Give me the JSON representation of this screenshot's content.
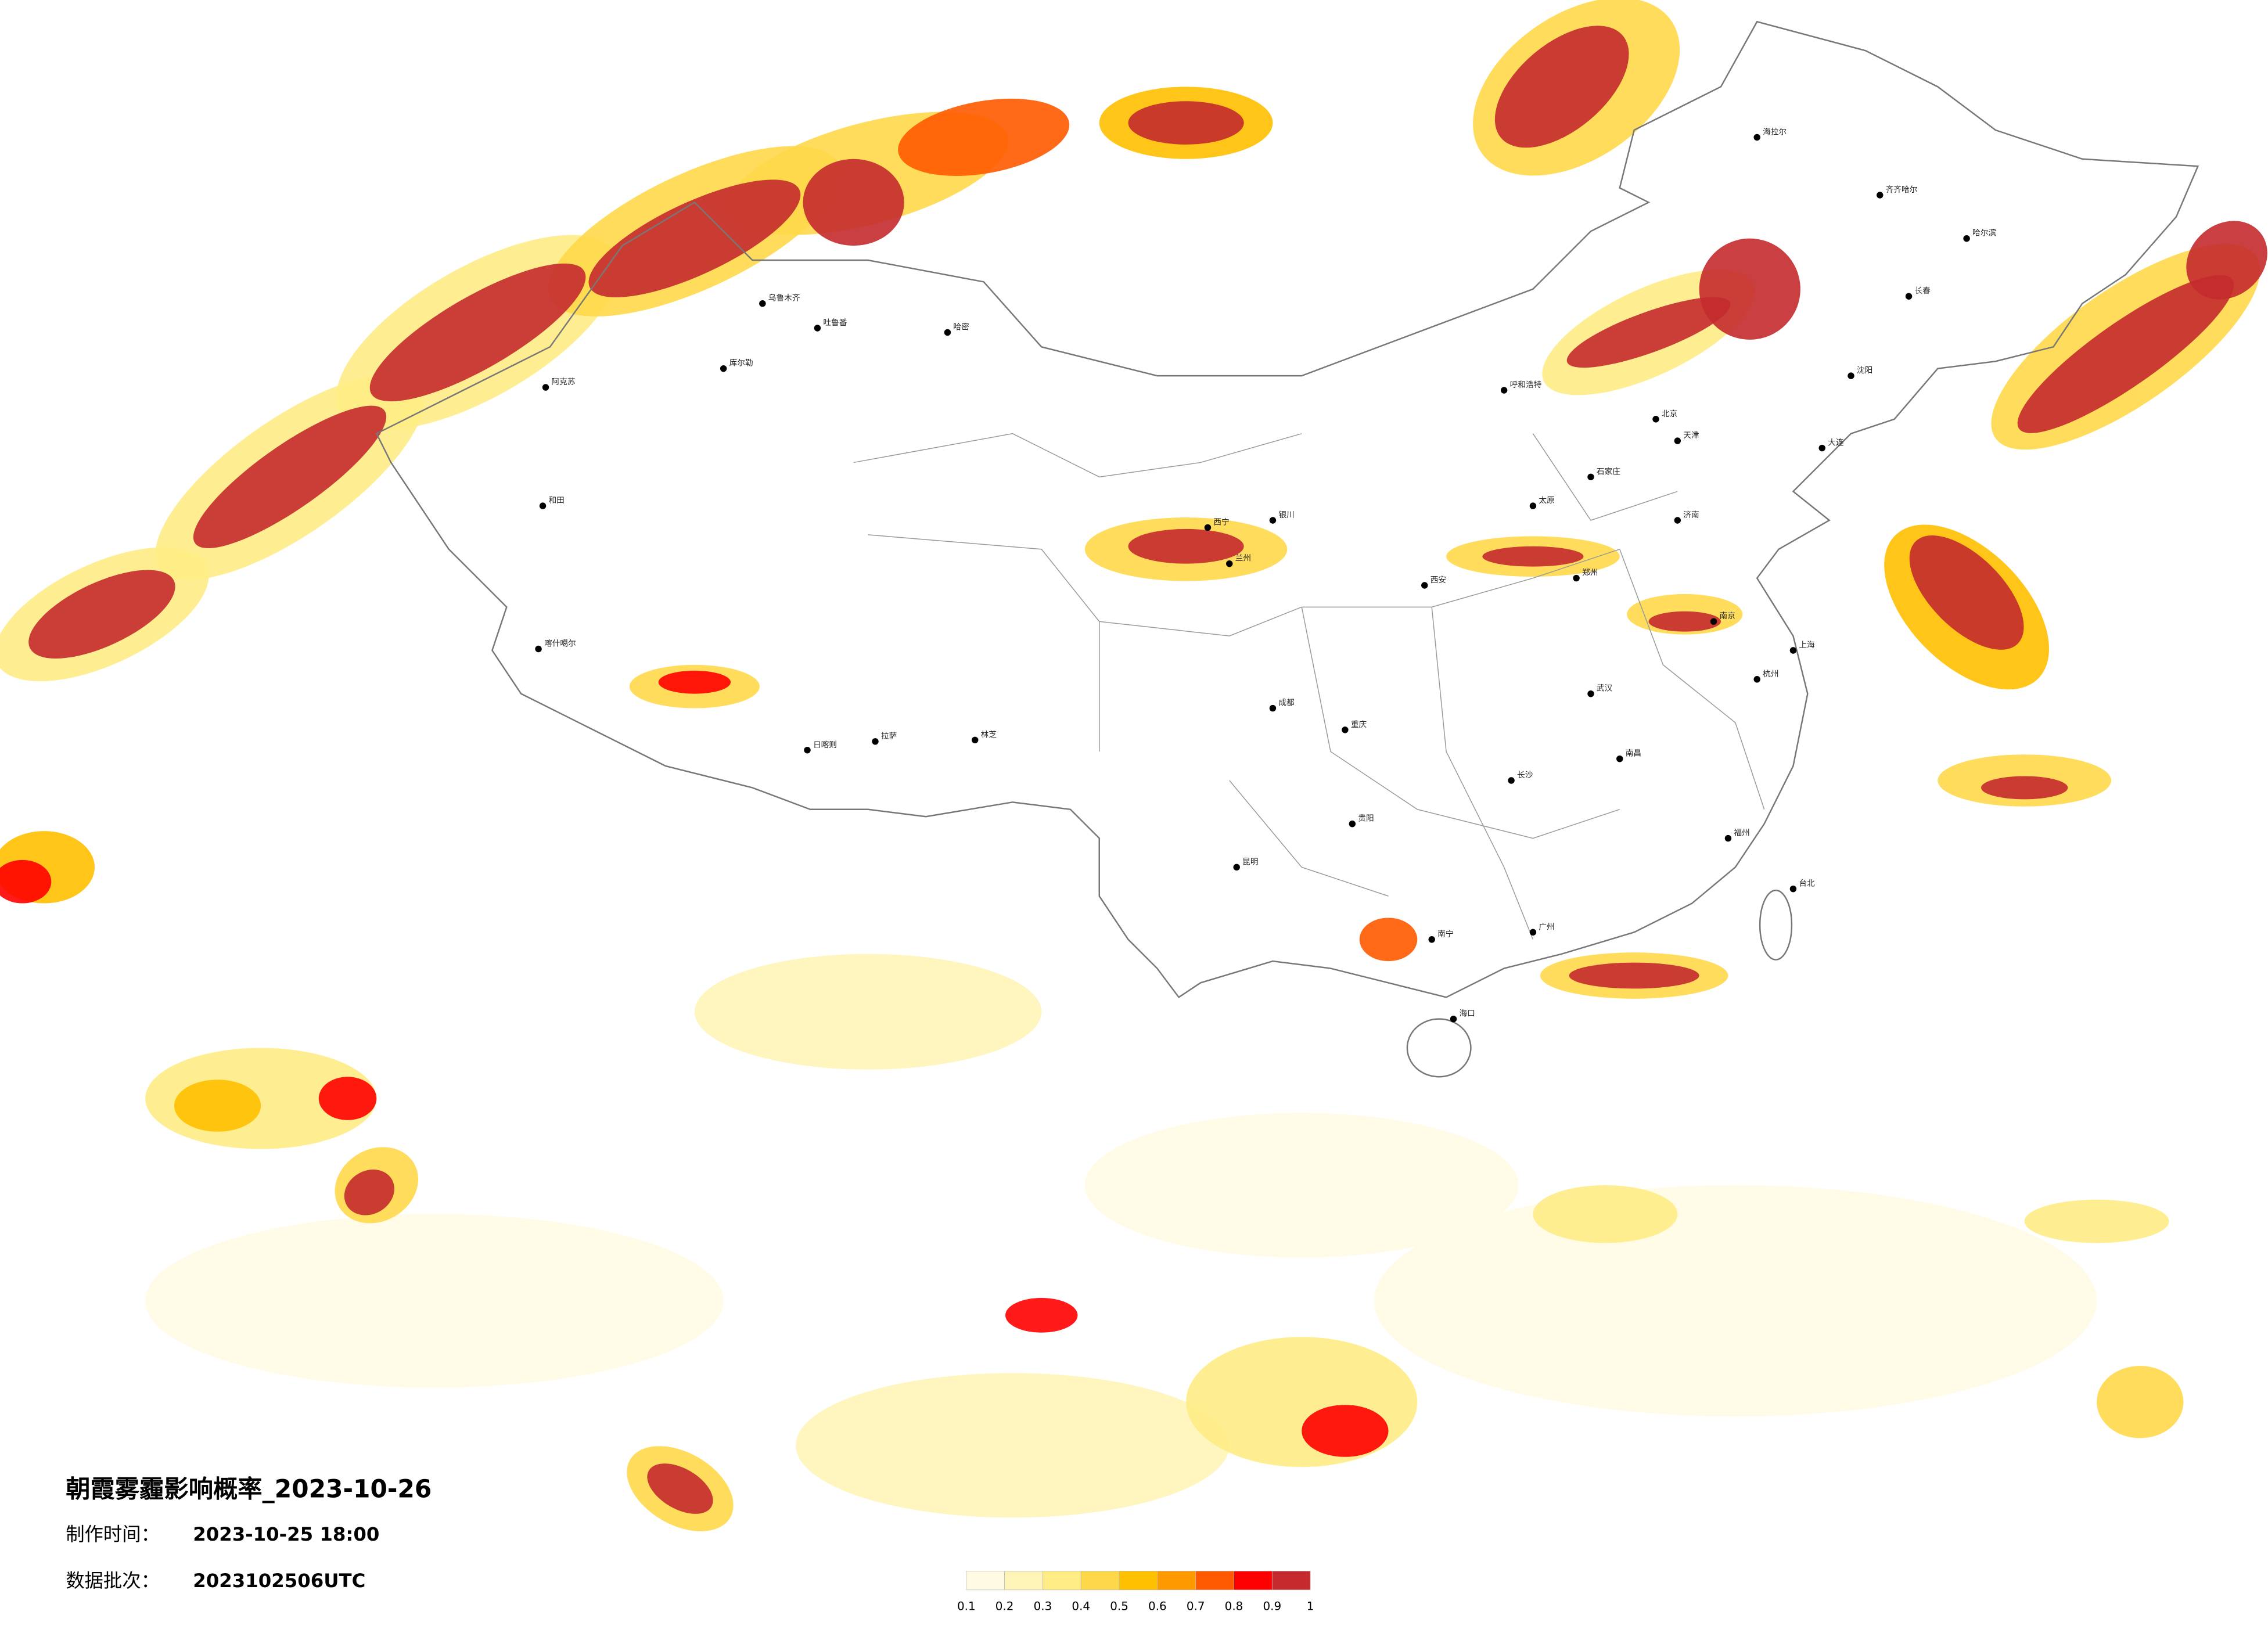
{
  "title": "朝霞雾霾影响概率_2023-10-26",
  "production_time": {
    "label": "制作时间：",
    "value": "2023-10-25 18:00"
  },
  "data_batch": {
    "label": "数据批次：",
    "value": "2023102506UTC"
  },
  "legend": {
    "ticks": [
      0.1,
      0.2,
      0.3,
      0.4,
      0.5,
      0.6,
      0.7,
      0.8,
      0.9,
      1
    ],
    "colors": [
      "#fffbe3",
      "#fff4b8",
      "#ffec85",
      "#ffd84a",
      "#ffc000",
      "#ff9900",
      "#ff5a00",
      "#ff0000",
      "#c42a2e"
    ]
  },
  "cities": [
    "乌鲁木齐",
    "吐鲁番",
    "哈密",
    "库尔勒",
    "阿克苏",
    "和田",
    "喀什噶尔",
    "拉萨",
    "日喀则",
    "林芝",
    "西宁",
    "兰州",
    "银川",
    "呼和浩特",
    "北京",
    "天津",
    "石家庄",
    "太原",
    "济南",
    "郑州",
    "西安",
    "成都",
    "重庆",
    "贵阳",
    "昆明",
    "南宁",
    "广州",
    "长沙",
    "武汉",
    "南昌",
    "南京",
    "上海",
    "杭州",
    "福州",
    "台北",
    "海口",
    "哈尔滨",
    "长春",
    "沈阳",
    "大连",
    "海拉尔",
    "齐齐哈尔"
  ]
}
